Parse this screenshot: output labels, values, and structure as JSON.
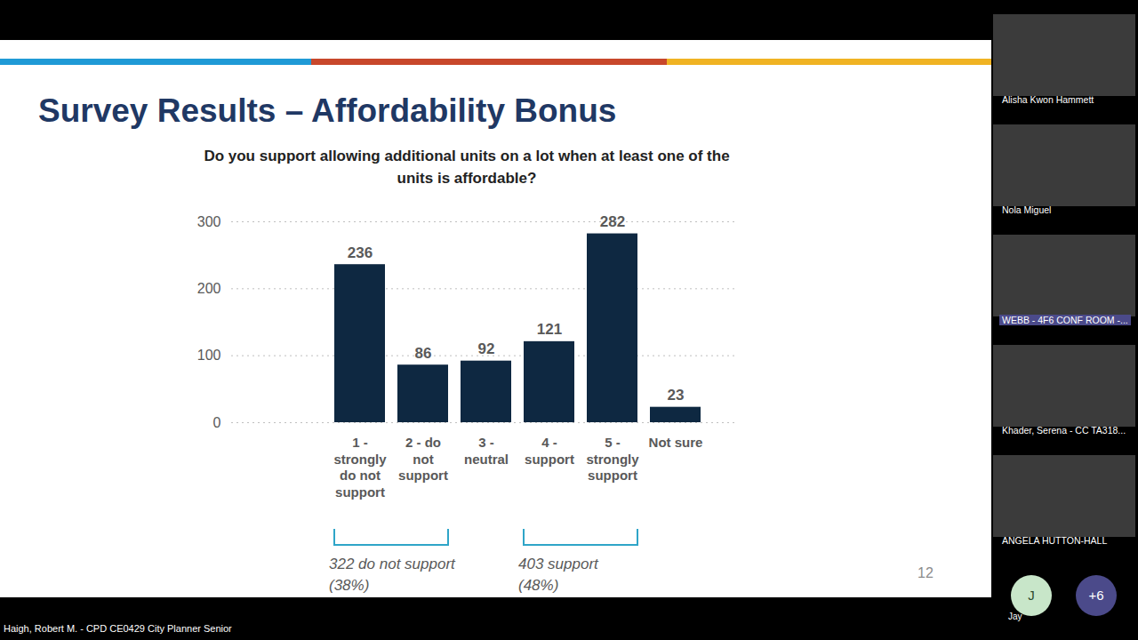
{
  "slide": {
    "title": "Survey Results – Affordability Bonus",
    "page_number": 12
  },
  "chart_data": {
    "type": "bar",
    "title": "Do you support allowing additional units on a lot when at least one of the units is affordable?",
    "categories": [
      "1 - strongly do not support",
      "2 - do not support",
      "3 - neutral",
      "4 - support",
      "5 - strongly support",
      "Not sure"
    ],
    "values": [
      236,
      86,
      92,
      121,
      282,
      23
    ],
    "color": "#0e2841",
    "ylim": [
      0,
      300
    ],
    "yticks": [
      0,
      100,
      200,
      300
    ],
    "grid": true,
    "data_labels": true,
    "annotations": [
      {
        "text": "322 do not support (38%)",
        "from": "1 - strongly do not support",
        "to": "2 - do not support"
      },
      {
        "text": "403 support (48%)",
        "from": "4 - support",
        "to": "5 - strongly support"
      }
    ]
  },
  "meeting": {
    "participants": [
      "Alisha Kwon Hammett",
      "Nola Miguel",
      "WEBB - 4F6 CONF ROOM -...",
      "Khader, Serena - CC TA318...",
      "ANGELA HUTTON-HALL"
    ],
    "avatar": {
      "initial": "J",
      "name": "Jay"
    },
    "more": "+6",
    "presenter": "Haigh, Robert M. - CPD CE0429 City Planner Senior"
  }
}
